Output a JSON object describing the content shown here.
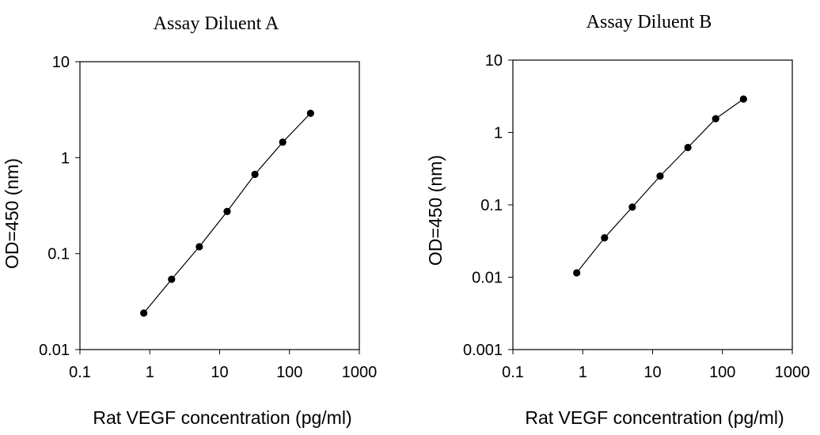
{
  "chart_data": [
    {
      "type": "line",
      "title": "Assay Diluent A",
      "xlabel": "Rat VEGF concentration (pg/ml)",
      "ylabel": "OD=450 (nm)",
      "x_scale": "log",
      "y_scale": "log",
      "xlim": [
        0.1,
        1000
      ],
      "ylim": [
        0.01,
        10
      ],
      "x_ticks": [
        0.1,
        1,
        10,
        100,
        1000
      ],
      "x_tick_labels": [
        "0.1",
        "1",
        "10",
        "100",
        "1000"
      ],
      "y_ticks": [
        0.01,
        0.1,
        1,
        10
      ],
      "y_tick_labels": [
        "0.01",
        "0.1",
        "1",
        "10"
      ],
      "grid": false,
      "legend": "none",
      "markers": true,
      "color": "#000000",
      "series": [
        {
          "x": [
            0.82,
            2.05,
            5.12,
            12.8,
            32,
            80,
            200
          ],
          "y": [
            0.024,
            0.054,
            0.118,
            0.275,
            0.67,
            1.45,
            2.9
          ]
        }
      ]
    },
    {
      "type": "line",
      "title": "Assay Diluent B",
      "xlabel": "Rat VEGF concentration (pg/ml)",
      "ylabel": "OD=450 (nm)",
      "x_scale": "log",
      "y_scale": "log",
      "xlim": [
        0.1,
        1000
      ],
      "ylim": [
        0.001,
        10
      ],
      "x_ticks": [
        0.1,
        1,
        10,
        100,
        1000
      ],
      "x_tick_labels": [
        "0.1",
        "1",
        "10",
        "100",
        "1000"
      ],
      "y_ticks": [
        0.001,
        0.01,
        0.1,
        1,
        10
      ],
      "y_tick_labels": [
        "0.001",
        "0.01",
        "0.1",
        "1",
        "10"
      ],
      "grid": false,
      "legend": "none",
      "markers": true,
      "color": "#000000",
      "series": [
        {
          "x": [
            0.82,
            2.05,
            5.12,
            12.8,
            32,
            80,
            200
          ],
          "y": [
            0.0115,
            0.035,
            0.093,
            0.25,
            0.62,
            1.55,
            2.9
          ]
        }
      ]
    }
  ]
}
